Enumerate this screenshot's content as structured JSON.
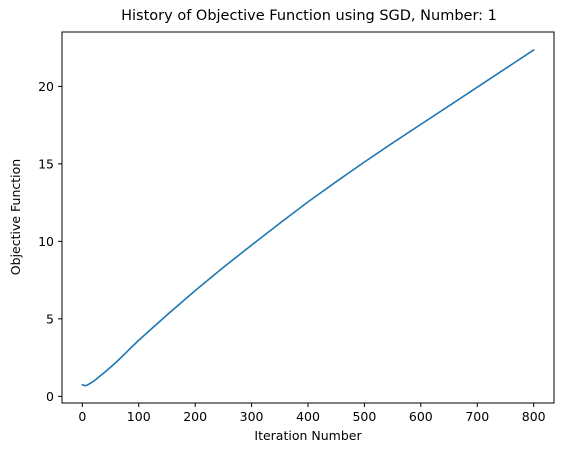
{
  "chart_data": {
    "type": "line",
    "title": "History of Objective Function using SGD, Number: 1",
    "xlabel": "Iteration Number",
    "ylabel": "Objective Function",
    "xlim": [
      -36,
      836
    ],
    "ylim": [
      -0.43,
      23.51
    ],
    "xticks": [
      0,
      100,
      200,
      300,
      400,
      500,
      600,
      700,
      800
    ],
    "yticks": [
      0,
      5,
      10,
      15,
      20
    ],
    "grid": false,
    "legend": "none",
    "series_color": "#1f77b4",
    "series": [
      {
        "x": [
          0,
          5,
          10,
          20,
          40,
          60,
          100,
          150,
          200,
          250,
          300,
          350,
          400,
          450,
          500,
          550,
          600,
          650,
          700,
          750,
          800
        ],
        "values": [
          0.75,
          0.68,
          0.75,
          0.97,
          1.56,
          2.2,
          3.62,
          5.25,
          6.82,
          8.32,
          9.76,
          11.17,
          12.55,
          13.85,
          15.12,
          16.35,
          17.55,
          18.75,
          19.95,
          21.15,
          22.35
        ]
      }
    ]
  }
}
